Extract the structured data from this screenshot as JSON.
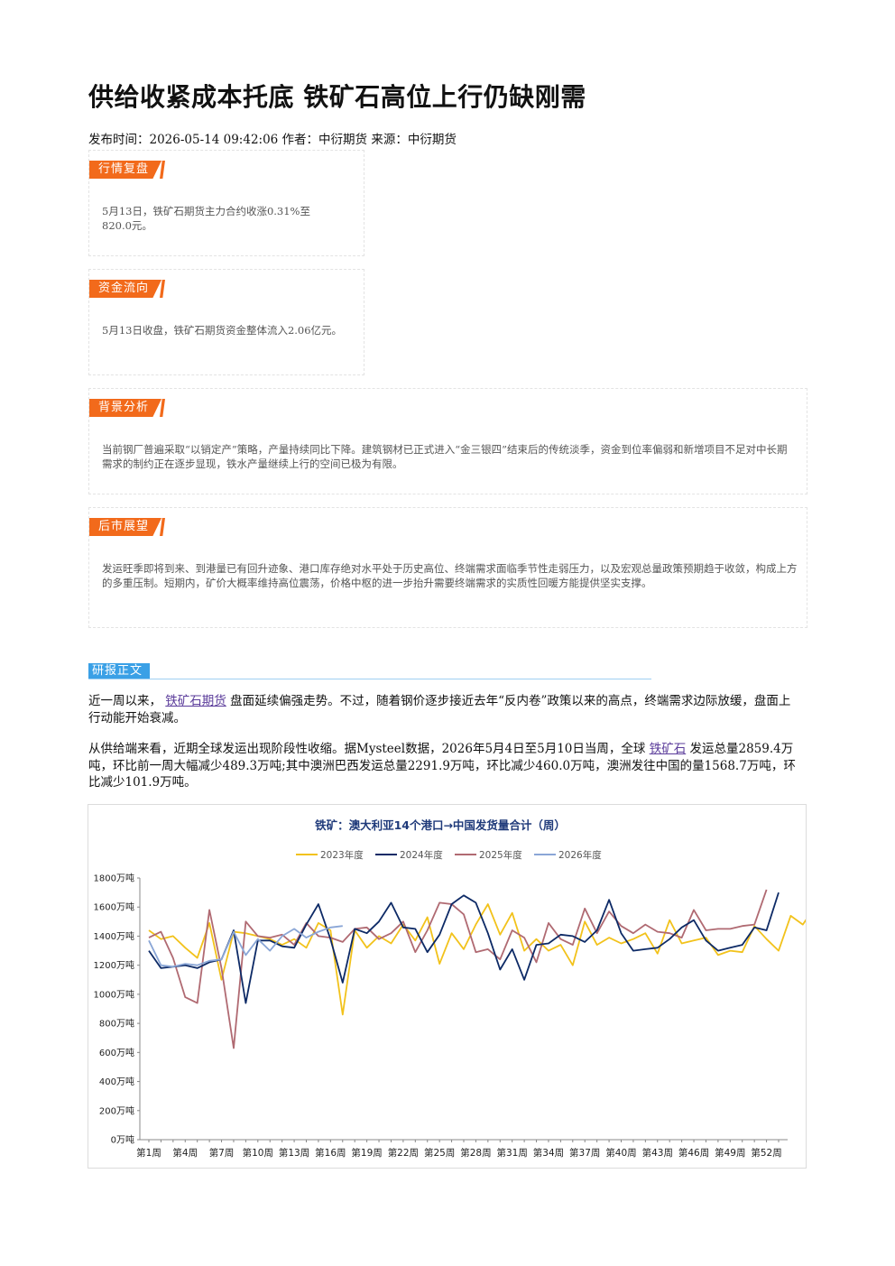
{
  "article": {
    "title": "供给收紧成本托底 铁矿石高位上行仍缺刚需",
    "meta": "发布时间：2026-05-14 09:42:06 作者：中衍期货 来源：中衍期货"
  },
  "boxes": {
    "review": {
      "tag": "行情复盘",
      "text": "5月13日，铁矿石期货主力合约收涨0.31%至820.0元。"
    },
    "fund": {
      "tag": "资金流向",
      "text": "5月13日收盘，铁矿石期货资金整体流入2.06亿元。"
    },
    "background": {
      "tag": "背景分析",
      "text": "当前钢厂普遍采取“以销定产”策略，产量持续同比下降。建筑钢材已正式进入“金三银四”结束后的传统淡季，资金到位率偏弱和新增项目不足对中长期需求的制约正在逐步显现，铁水产量继续上行的空间已极为有限。"
    },
    "outlook": {
      "tag": "后市展望",
      "text": "发运旺季即将到来、到港量已有回升迹象、港口库存绝对水平处于历史高位、终端需求面临季节性走弱压力，以及宏观总量政策预期趋于收敛，构成上方的多重压制。短期内，矿价大概率维持高位震荡，价格中枢的进一步抬升需要终端需求的实质性回暖方能提供坚实支撑。"
    }
  },
  "report": {
    "tag": "研报正文",
    "p1_pre": "近一周以来，",
    "p1_link": "铁矿石期货",
    "p1_post": "盘面延续偏强走势。不过，随着钢价逐步接近去年“反内卷”政策以来的高点，终端需求边际放缓，盘面上行动能开始衰减。",
    "p2_pre": "从供给端来看，近期全球发运出现阶段性收缩。据Mysteel数据，2026年5月4日至5月10日当周，全球",
    "p2_link": "铁矿石",
    "p2_post": "发运总量2859.4万吨，环比前一周大幅减少489.3万吨;其中澳洲巴西发运总量2291.9万吨，环比减少460.0万吨，澳洲发往中国的量1568.7万吨，环比减少101.9万吨。"
  },
  "chart_data": {
    "type": "line",
    "title": "铁矿：澳大利亚14个港口→中国发货量合计（周）",
    "ylim": [
      0,
      1800
    ],
    "yticks": [
      "0万吨",
      "200万吨",
      "400万吨",
      "600万吨",
      "800万吨",
      "1000万吨",
      "1200万吨",
      "1400万吨",
      "1600万吨",
      "1800万吨"
    ],
    "xticks": [
      "第1周",
      "第4周",
      "第7周",
      "第10周",
      "第13周",
      "第16周",
      "第19周",
      "第22周",
      "第25周",
      "第28周",
      "第31周",
      "第34周",
      "第37周",
      "第40周",
      "第43周",
      "第46周",
      "第49周",
      "第52周"
    ],
    "legend_position": "top",
    "series": [
      {
        "name": "2023年度",
        "color": "#f2c21b",
        "values": [
          1440,
          1380,
          1400,
          1320,
          1250,
          1490,
          1100,
          1430,
          1420,
          1400,
          1380,
          1340,
          1380,
          1320,
          1490,
          1440,
          860,
          1440,
          1320,
          1400,
          1350,
          1480,
          1370,
          1530,
          1210,
          1420,
          1310,
          1480,
          1620,
          1410,
          1560,
          1300,
          1380,
          1300,
          1340,
          1200,
          1500,
          1340,
          1390,
          1350,
          1380,
          1420,
          1280,
          1510,
          1350,
          1370,
          1390,
          1270,
          1300,
          1290,
          1470,
          1380,
          1300,
          1540,
          1480,
          1600,
          1370
        ]
      },
      {
        "name": "2024年度",
        "color": "#0d2a66",
        "values": [
          1300,
          1180,
          1190,
          1200,
          1180,
          1220,
          1240,
          1440,
          940,
          1370,
          1370,
          1330,
          1320,
          1480,
          1620,
          1380,
          1080,
          1450,
          1420,
          1500,
          1630,
          1460,
          1450,
          1290,
          1410,
          1620,
          1680,
          1630,
          1420,
          1170,
          1310,
          1100,
          1340,
          1350,
          1410,
          1400,
          1360,
          1440,
          1650,
          1420,
          1300,
          1310,
          1320,
          1380,
          1460,
          1510,
          1370,
          1300,
          1320,
          1340,
          1460,
          1440,
          1700
        ]
      },
      {
        "name": "2025年度",
        "color": "#b06a72",
        "values": [
          1390,
          1430,
          1250,
          980,
          940,
          1580,
          1180,
          630,
          1500,
          1400,
          1390,
          1410,
          1340,
          1490,
          1400,
          1390,
          1360,
          1450,
          1460,
          1380,
          1420,
          1500,
          1290,
          1440,
          1630,
          1620,
          1550,
          1290,
          1310,
          1240,
          1440,
          1390,
          1220,
          1490,
          1380,
          1340,
          1590,
          1420,
          1570,
          1470,
          1420,
          1480,
          1430,
          1420,
          1390,
          1580,
          1440,
          1450,
          1450,
          1470,
          1480,
          1720
        ]
      },
      {
        "name": "2026年度",
        "color": "#8aa6d6",
        "values": [
          1370,
          1200,
          1190,
          1210,
          1200,
          1230,
          1240,
          1430,
          1270,
          1380,
          1300,
          1400,
          1450,
          1390,
          1430,
          1460,
          1470
        ]
      }
    ]
  }
}
